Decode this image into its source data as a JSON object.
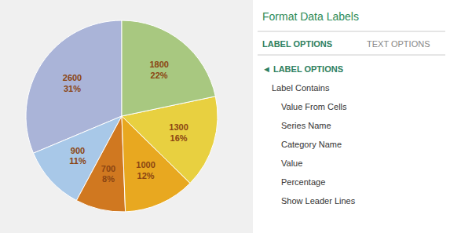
{
  "chart_data": {
    "type": "pie",
    "values": [
      2600,
      900,
      700,
      1000,
      1300,
      1800
    ],
    "value_labels": [
      "2600\n31%",
      "900\n11%",
      "700\n8%",
      "1000\n12%",
      "1300\n16%",
      "1800\n22%"
    ],
    "colors": [
      "#aab4d8",
      "#a8c8e8",
      "#d07820",
      "#e8a820",
      "#e8d040",
      "#a8c880"
    ],
    "data_labels": true,
    "annotations": [
      "Format Data Labels",
      "LABEL OPTIONS",
      "TEXT OPTIONS",
      "◄ LABEL OPTIONS",
      "Label Contains",
      "Value From Cells",
      "Series Name",
      "Category Name",
      "Value",
      "Percentage",
      "Show Leader Lines"
    ]
  }
}
